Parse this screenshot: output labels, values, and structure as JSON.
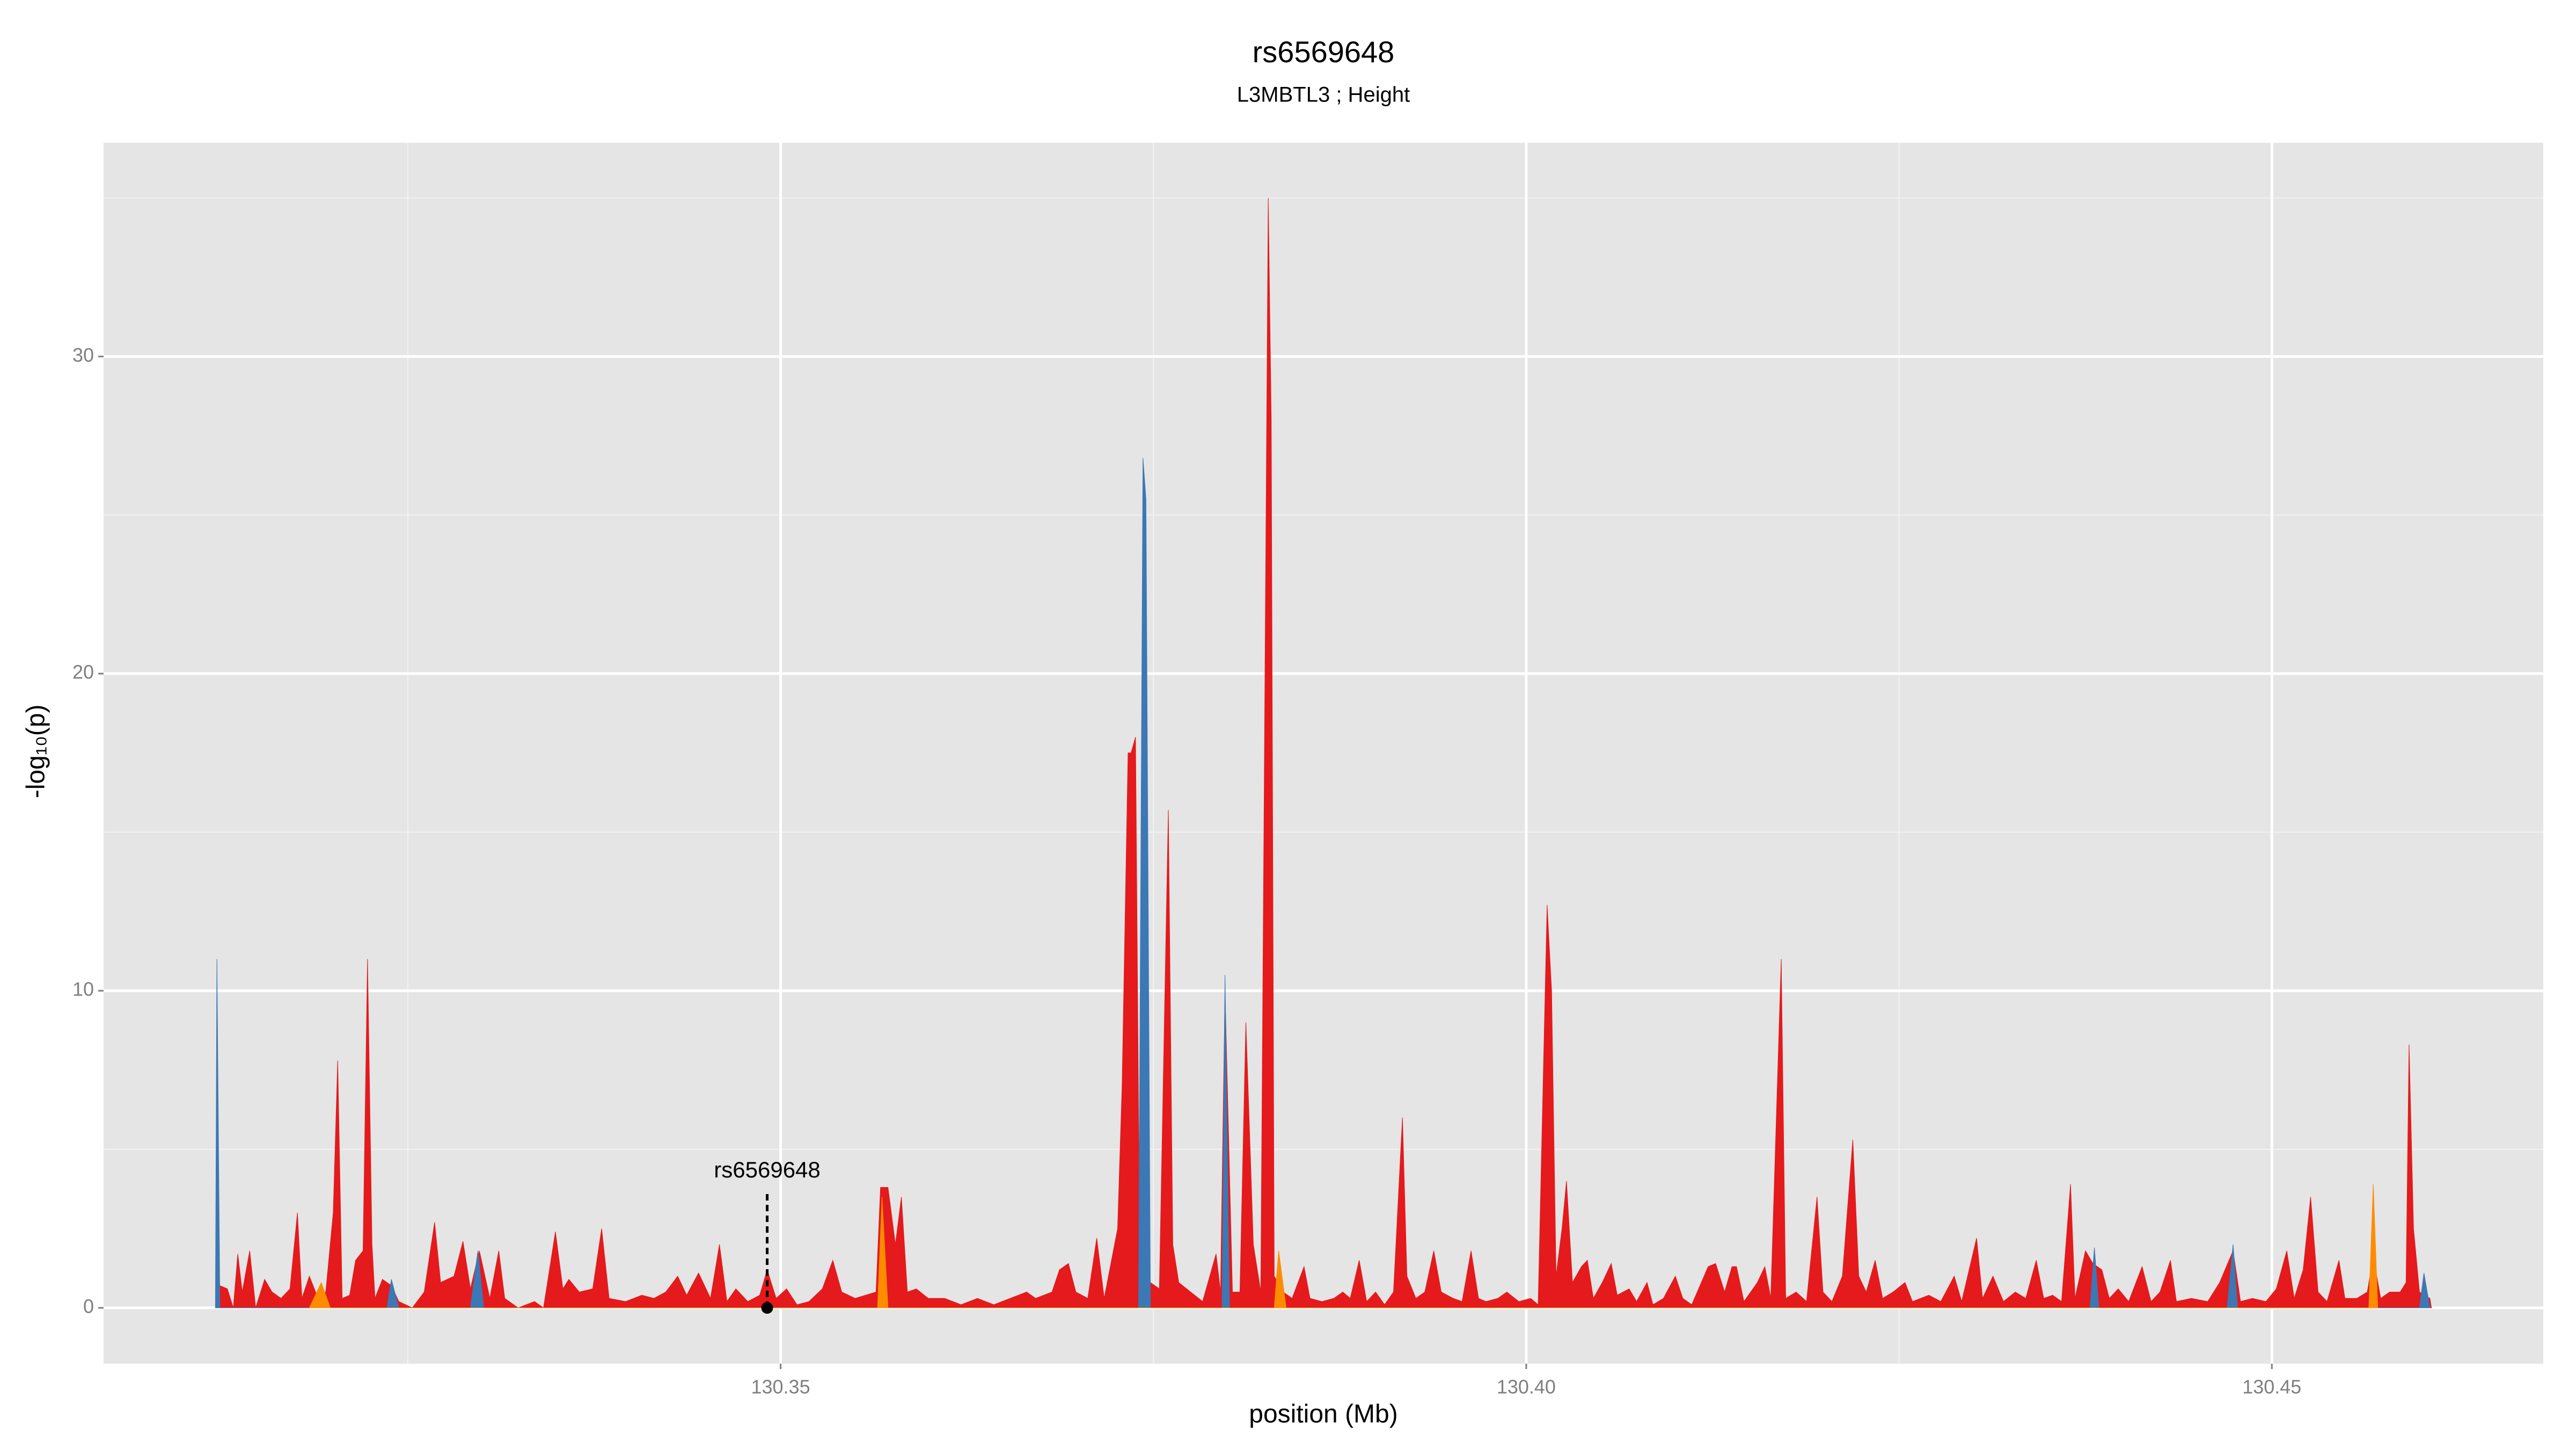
{
  "chart_data": {
    "type": "area",
    "title": "rs6569648",
    "subtitle": "L3MBTL3 ; Height",
    "x_label": "position (Mb)",
    "y_label": "-log₁₀(p)",
    "xlim": [
      130.3046,
      130.4682
    ],
    "ylim": [
      -1.76,
      36.74
    ],
    "xticks": [
      130.35,
      {
        "value": 130.4,
        "label": "130.40"
      },
      130.45
    ],
    "yticks": [
      0,
      10,
      20,
      30
    ],
    "grid": true,
    "annotation": {
      "text": "rs6569648",
      "x": 130.3491,
      "y": 0
    },
    "series": [
      {
        "name": "red",
        "color": "#e41a1c",
        "x": [
          130.3123,
          130.3124,
          130.3129,
          130.3133,
          130.3136,
          130.3139,
          130.3144,
          130.3148,
          130.3154,
          130.3159,
          130.3165,
          130.3171,
          130.3176,
          130.3179,
          130.3184,
          130.3189,
          130.3195,
          130.32,
          130.3203,
          130.3206,
          130.3211,
          130.3215,
          130.322,
          130.3223,
          130.3226,
          130.3228,
          130.3233,
          130.3239,
          130.3244,
          130.3253,
          130.3261,
          130.3268,
          130.3272,
          130.3281,
          130.3287,
          130.3292,
          130.3298,
          130.3305,
          130.3311,
          130.3315,
          130.3324,
          130.3335,
          130.3341,
          130.3349,
          130.3354,
          130.3358,
          130.3365,
          130.3374,
          130.338,
          130.3385,
          130.3396,
          130.3407,
          130.3415,
          130.3423,
          130.3431,
          130.3437,
          130.3445,
          130.3453,
          130.3459,
          130.3464,
          130.347,
          130.3478,
          130.3486,
          130.3491,
          130.3497,
          130.3504,
          130.3511,
          130.3519,
          130.3528,
          130.3535,
          130.3541,
          130.355,
          130.3557,
          130.3564,
          130.3567,
          130.3572,
          130.3577,
          130.3581,
          130.3585,
          130.3591,
          130.3599,
          130.361,
          130.3621,
          130.3632,
          130.3643,
          130.3654,
          130.3665,
          130.3671,
          130.3682,
          130.3687,
          130.3693,
          130.3698,
          130.3706,
          130.3712,
          130.3717,
          130.3726,
          130.3729,
          130.3733,
          130.3735,
          130.3738,
          130.3741,
          130.3748,
          130.3754,
          130.376,
          130.3763,
          130.3767,
          130.3775,
          130.3783,
          130.3792,
          130.3795,
          130.3798,
          130.3803,
          130.3808,
          130.3812,
          130.3817,
          130.3822,
          130.3827,
          130.3829,
          130.3831,
          130.3837,
          130.3843,
          130.3851,
          130.3855,
          130.3863,
          130.3871,
          130.3877,
          130.3882,
          130.3888,
          130.3893,
          130.3899,
          130.3905,
          130.3911,
          130.3917,
          130.392,
          130.3926,
          130.3932,
          130.3938,
          130.3943,
          130.3951,
          130.3957,
          130.3963,
          130.3968,
          130.3973,
          130.3981,
          130.3987,
          130.3995,
          130.4003,
          130.4008,
          130.4014,
          130.4017,
          130.402,
          130.4024,
          130.4027,
          130.4031,
          130.4037,
          130.4041,
          130.4045,
          130.4051,
          130.4057,
          130.4061,
          130.4069,
          130.4074,
          130.4081,
          130.4085,
          130.4092,
          130.41,
          130.4105,
          130.4111,
          130.4122,
          130.4127,
          130.4133,
          130.4138,
          130.4141,
          130.4146,
          130.4155,
          130.416,
          130.4164,
          130.4171,
          130.4174,
          130.4181,
          130.4188,
          130.4195,
          130.4199,
          130.4205,
          130.4212,
          130.4219,
          130.4223,
          130.4228,
          130.4234,
          130.4239,
          130.4246,
          130.4254,
          130.4259,
          130.427,
          130.4278,
          130.4287,
          130.4292,
          130.4302,
          130.4306,
          130.4313,
          130.432,
          130.4328,
          130.4335,
          130.4342,
          130.4347,
          130.4353,
          130.4359,
          130.4365,
          130.4368,
          130.4375,
          130.438,
          130.4386,
          130.4391,
          130.4397,
          130.4404,
          130.4413,
          130.4419,
          130.4425,
          130.4432,
          130.4436,
          130.4446,
          130.4457,
          130.4465,
          130.4474,
          130.4479,
          130.4487,
          130.4496,
          130.4503,
          130.451,
          130.4515,
          130.4521,
          130.4526,
          130.4531,
          130.4537,
          130.4545,
          130.4549,
          130.4557,
          130.4564,
          130.4568,
          130.4573,
          130.4579,
          130.4586,
          130.459,
          130.4592,
          130.4595,
          130.4599,
          130.4606,
          130.4607
        ],
        "values": [
          0,
          0.7,
          0.6,
          0,
          1.7,
          0.5,
          1.8,
          0,
          0.9,
          0.5,
          0.3,
          0.6,
          3,
          0.3,
          1,
          0.4,
          0.5,
          3,
          7.8,
          0.3,
          0.4,
          1.5,
          1.8,
          11,
          2,
          0.3,
          0.9,
          0.7,
          0.2,
          0,
          0.5,
          2.7,
          0.8,
          1,
          2.1,
          0.6,
          1.8,
          0.3,
          1.8,
          0.3,
          0,
          0.2,
          0,
          2.4,
          0.6,
          0.9,
          0.5,
          0.6,
          2.5,
          0.3,
          0.2,
          0.4,
          0.3,
          0.5,
          1,
          0.4,
          1.1,
          0.3,
          2,
          0.2,
          0.6,
          0.2,
          0.4,
          1.2,
          0.3,
          0.6,
          0.1,
          0.2,
          0.6,
          1.5,
          0.5,
          0.3,
          0.4,
          0.5,
          3.8,
          3.8,
          2,
          3.5,
          0.5,
          0.6,
          0.3,
          0.3,
          0.1,
          0.3,
          0.1,
          0.3,
          0.5,
          0.3,
          0.5,
          1.2,
          1.4,
          0.5,
          0.3,
          2.2,
          0.3,
          2.5,
          7,
          17.5,
          17.5,
          18,
          0.5,
          0.8,
          0.6,
          15.7,
          2,
          0.8,
          0.5,
          0.2,
          1.7,
          0.5,
          10,
          0.5,
          0.5,
          9,
          2,
          0.5,
          35,
          28,
          1,
          0.5,
          0.3,
          1.3,
          0.3,
          0.2,
          0.3,
          0.5,
          0.3,
          1.5,
          0.2,
          0.5,
          0.1,
          0.5,
          6,
          1,
          0.3,
          0.5,
          1.8,
          0.5,
          0.3,
          0.2,
          1.8,
          0.3,
          0.2,
          0.3,
          0.5,
          0.2,
          0.3,
          0.1,
          12.7,
          10,
          1,
          2.5,
          4,
          0.8,
          1.3,
          1.5,
          0.3,
          0.8,
          1.4,
          0.4,
          0.6,
          0.2,
          0.8,
          0.1,
          0.3,
          1,
          0.3,
          0.1,
          1.3,
          1.4,
          0.5,
          1.3,
          1.3,
          0.2,
          0.8,
          1.3,
          0.3,
          11,
          0.3,
          0.5,
          0.2,
          3.5,
          0.5,
          0.2,
          1,
          5.3,
          1,
          0.5,
          1.5,
          0.3,
          0.5,
          0.8,
          0.2,
          0.4,
          0.2,
          1,
          0.2,
          2.2,
          0.3,
          1,
          0.2,
          0.5,
          0.3,
          1.5,
          0.3,
          0.4,
          0.2,
          3.9,
          0.3,
          1.8,
          1.4,
          1.2,
          0.3,
          0.6,
          0.2,
          1.3,
          0.2,
          0.5,
          1.5,
          0.2,
          0.3,
          0.2,
          0.8,
          1.8,
          0.2,
          0.3,
          0.2,
          0.6,
          1.8,
          0.3,
          1.2,
          3.5,
          0.5,
          0.2,
          1.5,
          0.3,
          0.3,
          0.5,
          1.6,
          0.3,
          0.5,
          0.5,
          0.8,
          8.3,
          2.5,
          0.5,
          0.3,
          0
        ]
      },
      {
        "name": "blue",
        "color": "#3b78b5",
        "x": [
          130.3121,
          130.3122,
          130.3124,
          130.3236,
          130.3239,
          130.3244,
          130.3292,
          130.3297,
          130.3301,
          130.374,
          130.3743,
          130.3745,
          130.3748,
          130.3796,
          130.3798,
          130.3801,
          130.4378,
          130.4381,
          130.4384,
          130.447,
          130.4474,
          130.4477,
          130.4599,
          130.4602,
          130.4606
        ],
        "values": [
          0,
          11,
          0,
          0,
          0.9,
          0,
          0,
          1.8,
          0,
          0,
          26.8,
          25.5,
          0,
          0,
          10.5,
          0,
          0,
          1.9,
          0,
          0,
          2,
          0,
          0,
          1.1,
          0
        ]
      },
      {
        "name": "orange",
        "color": "#ff8c00",
        "x": [
          130.3184,
          130.3192,
          130.3198,
          130.3565,
          130.3568,
          130.3572,
          130.3831,
          130.3834,
          130.3839,
          130.4565,
          130.4568,
          130.4571
        ],
        "values": [
          0,
          0.8,
          0,
          0,
          3.5,
          0,
          0,
          1.8,
          0,
          0,
          3.9,
          0
        ]
      }
    ]
  }
}
